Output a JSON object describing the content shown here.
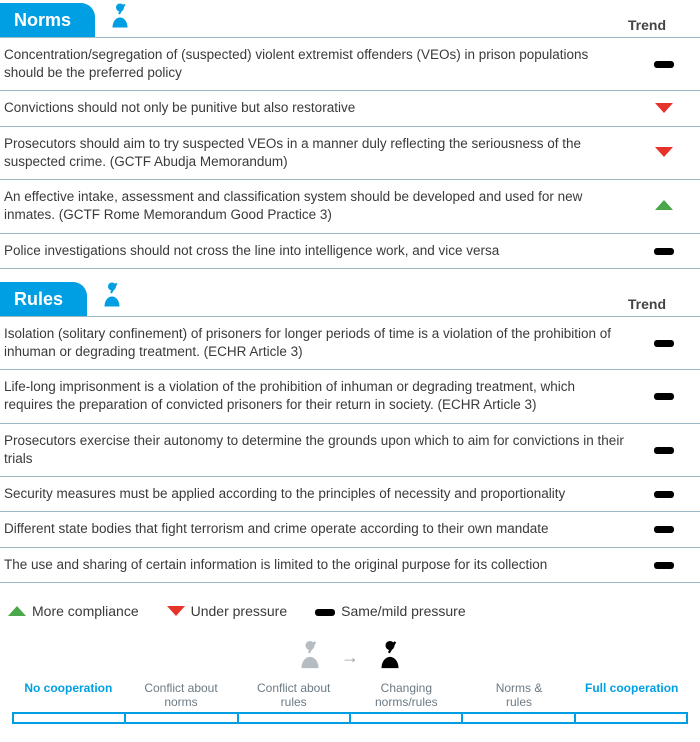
{
  "colors": {
    "accent": "#009fe3",
    "up": "#4aa84a",
    "down": "#e6332a",
    "same": "#000000",
    "border": "#9fb8c8"
  },
  "trend_header": "Trend",
  "sections": [
    {
      "title": "Norms",
      "rows": [
        {
          "text": "Concentration/segregation of (suspected) violent extremist offenders (VEOs) in prison populations should be the preferred policy",
          "trend": "same"
        },
        {
          "text": "Convictions should not only be punitive but also restorative",
          "trend": "down"
        },
        {
          "text": "Prosecutors should aim to try suspected VEOs in a manner duly reflecting the seriousness of the suspected crime. (GCTF Abudja Memorandum)",
          "trend": "down"
        },
        {
          "text": "An effective intake, assessment and classification system should be developed and used for new inmates. (GCTF Rome Memorandum Good Practice 3)",
          "trend": "up"
        },
        {
          "text": "Police investigations should not cross the line into intelligence work, and vice versa",
          "trend": "same"
        }
      ]
    },
    {
      "title": "Rules",
      "rows": [
        {
          "text": "Isolation (solitary confinement) of prisoners for longer periods of time is a violation of the prohibition of inhuman or degrading treatment. (ECHR Article 3)",
          "trend": "same"
        },
        {
          "text": "Life-long imprisonment is a violation of the prohibition of inhuman or degrading treatment, which requires the preparation of convicted prisoners for their return in society. (ECHR Article 3)",
          "trend": "same"
        },
        {
          "text": "Prosecutors exercise their autonomy to determine the grounds upon which to aim for convictions in their trials",
          "trend": "same"
        },
        {
          "text": "Security measures must be applied according to the principles of necessity and proportionality",
          "trend": "same"
        },
        {
          "text": "Different state bodies that fight terrorism and crime operate according to their own mandate",
          "trend": "same"
        },
        {
          "text": "The use and sharing of certain information is limited to the original purpose for its collection",
          "trend": "same"
        }
      ]
    }
  ],
  "legend": {
    "up": "More compliance",
    "down": "Under pressure",
    "same": "Same/mild pressure"
  },
  "scale": {
    "left": "No cooperation",
    "steps": [
      "Conflict about norms",
      "Conflict about rules",
      "Changing norms/rules",
      "Norms & rules"
    ],
    "right": "Full cooperation"
  }
}
